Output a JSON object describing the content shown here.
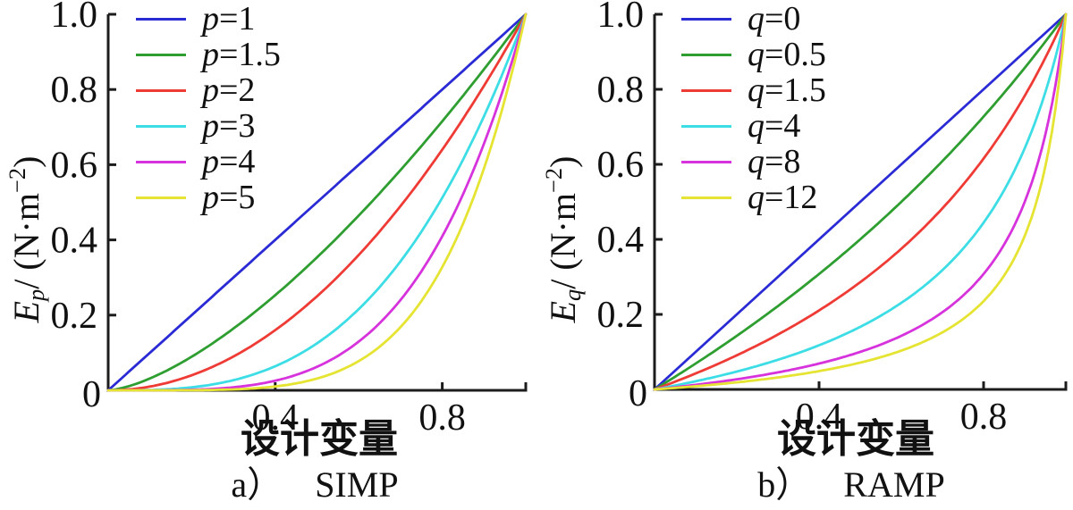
{
  "figure": {
    "background": "#ffffff",
    "text_color": "#111111",
    "axis_color": "#1c1c1c"
  },
  "chart_data": [
    {
      "id": "simp",
      "type": "line",
      "caption_prefix": "a）",
      "caption_label": "SIMP",
      "xlabel": "设计变量",
      "ylabel": {
        "sym": "E",
        "sub": "p",
        "mid": "/ (N·m",
        "sup": "−2",
        "end": ")"
      },
      "ylabel_text": "Ep/ (N·m−2)",
      "xlim": [
        0,
        1
      ],
      "ylim": [
        0,
        1
      ],
      "grid": false,
      "legend_position": "top-left-inside",
      "formula": "power",
      "origin_label": "0",
      "y_ticks": [
        {
          "v": 1.0,
          "label": "1.0"
        },
        {
          "v": 0.8,
          "label": "0.8"
        },
        {
          "v": 0.6,
          "label": "0.6"
        },
        {
          "v": 0.4,
          "label": "0.4"
        },
        {
          "v": 0.2,
          "label": "0.2"
        }
      ],
      "x_ticks": [
        {
          "v": 0.4,
          "label": "0.4"
        },
        {
          "v": 0.8,
          "label": "0.8"
        },
        {
          "v": 1.0,
          "label": ""
        }
      ],
      "x": [
        0,
        0.1,
        0.2,
        0.3,
        0.4,
        0.5,
        0.6,
        0.7,
        0.8,
        0.9,
        1.0
      ],
      "series": [
        {
          "name": "p=1",
          "var": "p",
          "value": "1",
          "param": 1,
          "color": "#2b2bd5",
          "y": [
            0,
            0.1,
            0.2,
            0.3,
            0.4,
            0.5,
            0.6,
            0.7,
            0.8,
            0.9,
            1
          ]
        },
        {
          "name": "p=1.5",
          "var": "p",
          "value": "1.5",
          "param": 1.5,
          "color": "#2e9e30",
          "y": [
            0,
            0.0316,
            0.0894,
            0.1643,
            0.253,
            0.3536,
            0.4648,
            0.5857,
            0.7155,
            0.8538,
            1
          ]
        },
        {
          "name": "p=2",
          "var": "p",
          "value": "2",
          "param": 2,
          "color": "#ef3b35",
          "y": [
            0,
            0.01,
            0.04,
            0.09,
            0.16,
            0.25,
            0.36,
            0.49,
            0.64,
            0.81,
            1
          ]
        },
        {
          "name": "p=3",
          "var": "p",
          "value": "3",
          "param": 3,
          "color": "#3ddde6",
          "y": [
            0,
            0.001,
            0.008,
            0.027,
            0.064,
            0.125,
            0.216,
            0.343,
            0.512,
            0.729,
            1
          ]
        },
        {
          "name": "p=4",
          "var": "p",
          "value": "4",
          "param": 4,
          "color": "#d633dc",
          "y": [
            0,
            0.0001,
            0.0016,
            0.0081,
            0.0256,
            0.0625,
            0.1296,
            0.2401,
            0.4096,
            0.6561,
            1
          ]
        },
        {
          "name": "p=5",
          "var": "p",
          "value": "5",
          "param": 5,
          "color": "#e6e432",
          "y": [
            0,
            1e-05,
            0.0003,
            0.0024,
            0.0102,
            0.0313,
            0.0778,
            0.1681,
            0.3277,
            0.5905,
            1
          ]
        }
      ]
    },
    {
      "id": "ramp",
      "type": "line",
      "caption_prefix": "b）",
      "caption_label": "RAMP",
      "xlabel": "设计变量",
      "ylabel": {
        "sym": "E",
        "sub": "q",
        "mid": "/ (N·m",
        "sup": "−2",
        "end": ")"
      },
      "ylabel_text": "Eq/ (N·m−2)",
      "xlim": [
        0,
        1
      ],
      "ylim": [
        0,
        1
      ],
      "grid": false,
      "legend_position": "top-left-inside",
      "formula": "ramp",
      "origin_label": "0",
      "y_ticks": [
        {
          "v": 1.0,
          "label": "1.0"
        },
        {
          "v": 0.8,
          "label": "0.8"
        },
        {
          "v": 0.6,
          "label": "0.6"
        },
        {
          "v": 0.4,
          "label": "0.4"
        },
        {
          "v": 0.2,
          "label": "0.2"
        }
      ],
      "x_ticks": [
        {
          "v": 0.4,
          "label": "0.4"
        },
        {
          "v": 0.8,
          "label": "0.8"
        },
        {
          "v": 1.0,
          "label": ""
        }
      ],
      "x": [
        0,
        0.1,
        0.2,
        0.3,
        0.4,
        0.5,
        0.6,
        0.7,
        0.8,
        0.9,
        1.0
      ],
      "series": [
        {
          "name": "q=0",
          "var": "q",
          "value": "0",
          "param": 0,
          "color": "#2b2bd5",
          "y": [
            0,
            0.1,
            0.2,
            0.3,
            0.4,
            0.5,
            0.6,
            0.7,
            0.8,
            0.9,
            1
          ]
        },
        {
          "name": "q=0.5",
          "var": "q",
          "value": "0.5",
          "param": 0.5,
          "color": "#2e9e30",
          "y": [
            0,
            0.069,
            0.1429,
            0.2222,
            0.3077,
            0.4,
            0.5,
            0.6087,
            0.7273,
            0.8571,
            1
          ]
        },
        {
          "name": "q=1.5",
          "var": "q",
          "value": "1.5",
          "param": 1.5,
          "color": "#ef3b35",
          "y": [
            0,
            0.0426,
            0.0909,
            0.1463,
            0.2105,
            0.2857,
            0.375,
            0.4828,
            0.6154,
            0.7826,
            1
          ]
        },
        {
          "name": "q=4",
          "var": "q",
          "value": "4",
          "param": 4,
          "color": "#3ddde6",
          "y": [
            0,
            0.0217,
            0.0476,
            0.0789,
            0.1176,
            0.1667,
            0.2308,
            0.3182,
            0.4444,
            0.6429,
            1
          ]
        },
        {
          "name": "q=8",
          "var": "q",
          "value": "8",
          "param": 8,
          "color": "#d633dc",
          "y": [
            0,
            0.0122,
            0.027,
            0.0455,
            0.069,
            0.1,
            0.1429,
            0.2059,
            0.3077,
            0.5,
            1
          ]
        },
        {
          "name": "q=12",
          "var": "q",
          "value": "12",
          "param": 12,
          "color": "#e6e432",
          "y": [
            0,
            0.0085,
            0.0189,
            0.0319,
            0.0488,
            0.0714,
            0.1034,
            0.1522,
            0.2353,
            0.4091,
            1
          ]
        }
      ]
    }
  ]
}
